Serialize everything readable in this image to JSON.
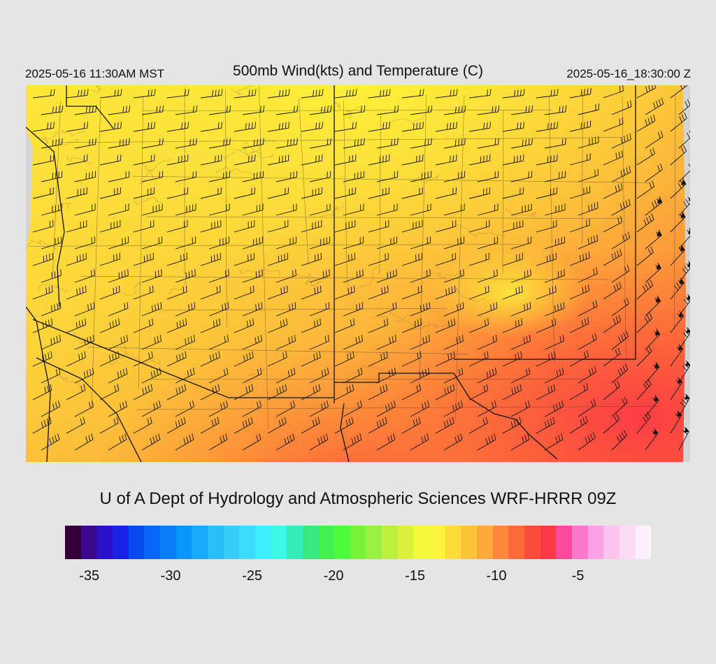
{
  "header": {
    "local_time": "2025-05-16 11:30AM MST",
    "title": "500mb Wind(kts) and Temperature (C)",
    "valid_time": "2025-05-16_18:30:00 Z"
  },
  "credit": "U of A Dept of Hydrology and Atmospheric Sciences WRF-HRRR 09Z",
  "colorbar": {
    "min": -36,
    "max": -1,
    "colors": [
      "#33003b",
      "#3b0a8c",
      "#2b10c8",
      "#1a22e6",
      "#0a48f0",
      "#0a66f5",
      "#0a7ef8",
      "#0a96fa",
      "#1aaafa",
      "#2bbefa",
      "#38ccfa",
      "#3adcff",
      "#3ef0ff",
      "#3cf8e6",
      "#34ecb4",
      "#38e880",
      "#44f050",
      "#4cfc3a",
      "#78f23a",
      "#9af042",
      "#bcf23e",
      "#daf23e",
      "#f2f83c",
      "#fcf43a",
      "#fcdc3a",
      "#fcc43a",
      "#fca83a",
      "#fc883a",
      "#fc6a3a",
      "#fc4c3a",
      "#fc3a46",
      "#fc4a9a",
      "#fc78c8",
      "#fca2e6",
      "#fcc4ee",
      "#fcdcf4",
      "#fcf0fa"
    ],
    "tick_labels": [
      "-35",
      "-30",
      "-25",
      "-20",
      "-15",
      "-10",
      "-5"
    ]
  },
  "map_data": {
    "field": "500mb temperature (C) with wind barbs (kts)",
    "temperature_range_shown": [
      -15,
      -8
    ],
    "region": "Southwestern United States and northern Mexico"
  }
}
